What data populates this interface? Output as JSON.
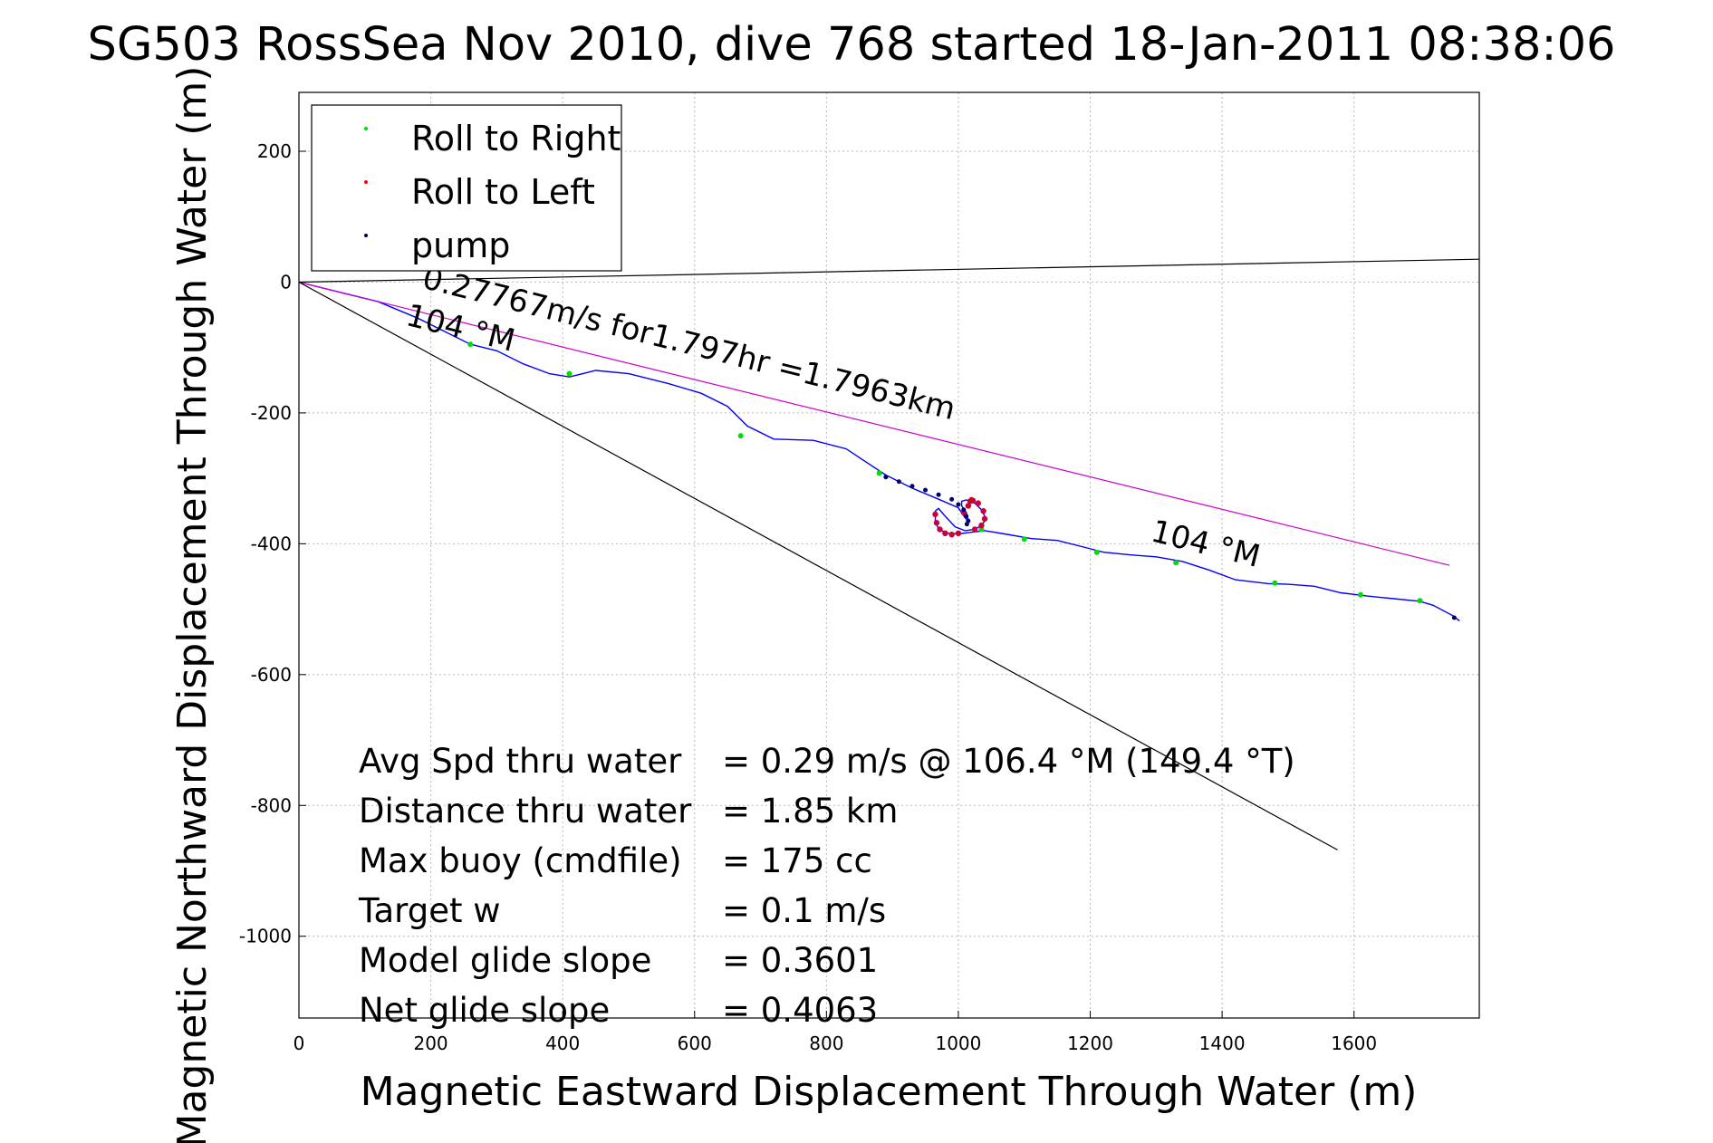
{
  "chart_data": {
    "type": "line",
    "title": "SG503 RossSea Nov 2010, dive 768 started 18-Jan-2011 08:38:06",
    "xlabel": "Magnetic Eastward Displacement Through Water (m)",
    "ylabel": "Magnetic Northward Displacement Through Water (m)",
    "xlim": [
      0,
      1790
    ],
    "ylim": [
      -1125,
      290
    ],
    "grid": true,
    "x_ticks": [
      0,
      200,
      400,
      600,
      800,
      1000,
      1200,
      1400,
      1600
    ],
    "x_tick_labels": [
      "0",
      "200",
      "400",
      "600",
      "800",
      "1000",
      "1200",
      "1400",
      "1600"
    ],
    "y_ticks": [
      200,
      0,
      -200,
      -400,
      -600,
      -800,
      -1000
    ],
    "y_tick_labels": [
      "200",
      "0",
      "-200",
      "-400",
      "-600",
      "-800",
      "-1000"
    ],
    "legend": {
      "placement": "top-left",
      "entries": [
        {
          "label": "Roll to Right",
          "color": "#00dd00"
        },
        {
          "label": "Roll to Left",
          "color": "#ff0000"
        },
        {
          "label": "pump",
          "color": "#000066"
        }
      ]
    },
    "series": [
      {
        "color": "#0000ff",
        "x": [
          0,
          60,
          120,
          180,
          230,
          260,
          300,
          340,
          380,
          410,
          450,
          500,
          560,
          610,
          650,
          680,
          720,
          780,
          830,
          860,
          890,
          930,
          970,
          1000,
          1010,
          1015,
          1012,
          1005,
          1005,
          1012,
          1025,
          1035,
          1040,
          1040,
          1035,
          1025,
          1010,
          995,
          980,
          970,
          965,
          965,
          970,
          985,
          1000,
          1015,
          1040,
          1070,
          1110,
          1150,
          1190,
          1220,
          1260,
          1300,
          1340,
          1380,
          1420,
          1470,
          1500,
          1540,
          1580,
          1620,
          1660,
          1700,
          1720,
          1750,
          1760
        ],
        "y": [
          0,
          -15,
          -30,
          -55,
          -80,
          -95,
          -105,
          -125,
          -140,
          -145,
          -135,
          -140,
          -155,
          -170,
          -190,
          -220,
          -240,
          -242,
          -255,
          -275,
          -295,
          -315,
          -332,
          -345,
          -360,
          -365,
          -352,
          -342,
          -335,
          -333,
          -338,
          -348,
          -358,
          -365,
          -372,
          -378,
          -380,
          -374,
          -358,
          -346,
          -350,
          -365,
          -378,
          -384,
          -385,
          -383,
          -380,
          -385,
          -392,
          -395,
          -405,
          -413,
          -417,
          -420,
          -427,
          -440,
          -455,
          -461,
          -462,
          -465,
          -475,
          -480,
          -484,
          -488,
          -494,
          -510,
          -518
        ]
      },
      {
        "color": "#cc00cc",
        "x": [
          0,
          1745
        ],
        "y": [
          0,
          -433
        ]
      },
      {
        "color": "#000000",
        "x": [
          0,
          1790
        ],
        "y": [
          0,
          35
        ]
      },
      {
        "color": "#000000",
        "x": [
          0,
          1575
        ],
        "y": [
          0,
          -868
        ]
      }
    ],
    "roll_right_points": {
      "x": [
        260,
        410,
        670,
        880,
        1035,
        1100,
        1210,
        1330,
        1480,
        1610,
        1700
      ],
      "y": [
        -95,
        -140,
        -235,
        -292,
        -378,
        -393,
        -413,
        -429,
        -460,
        -478,
        -487
      ]
    },
    "roll_left_points": {
      "x": [
        965,
        967,
        972,
        980,
        990,
        1000,
        1008,
        1015,
        1018,
        1020,
        1022,
        1030,
        1038,
        1040,
        1035,
        1025
      ],
      "y": [
        -355,
        -368,
        -378,
        -384,
        -386,
        -384,
        -352,
        -342,
        -335,
        -333,
        -334,
        -338,
        -350,
        -362,
        -372,
        -378
      ]
    },
    "pump_points": {
      "x": [
        890,
        910,
        930,
        950,
        970,
        990,
        1000,
        1008,
        1012,
        1015,
        1013,
        1752
      ],
      "y": [
        -298,
        -305,
        -312,
        -318,
        -325,
        -332,
        -340,
        -348,
        -358,
        -365,
        -370,
        -513
      ]
    },
    "annotations": [
      {
        "text": "0.27767m/s for1.797hr =1.7963km",
        "x": 185,
        "y": -8,
        "angle": 14
      },
      {
        "text": "104 °M",
        "x": 160,
        "y": -65,
        "angle": 14
      },
      {
        "text": "104 °M",
        "x": 1290,
        "y": -395,
        "angle": 14
      }
    ],
    "stats": [
      {
        "label": "Avg Spd thru water",
        "value": "=  0.29 m/s @ 106.4 °M (149.4 °T)"
      },
      {
        "label": "Distance thru water",
        "value": "=  1.85 km"
      },
      {
        "label": "Max buoy (cmdfile)",
        "value": "= 175 cc"
      },
      {
        "label": "Target w",
        "value": "= 0.1 m/s"
      },
      {
        "label": "Model glide slope",
        "value": "= 0.3601"
      },
      {
        "label": "Net glide slope",
        "value": "= 0.4063"
      }
    ]
  }
}
